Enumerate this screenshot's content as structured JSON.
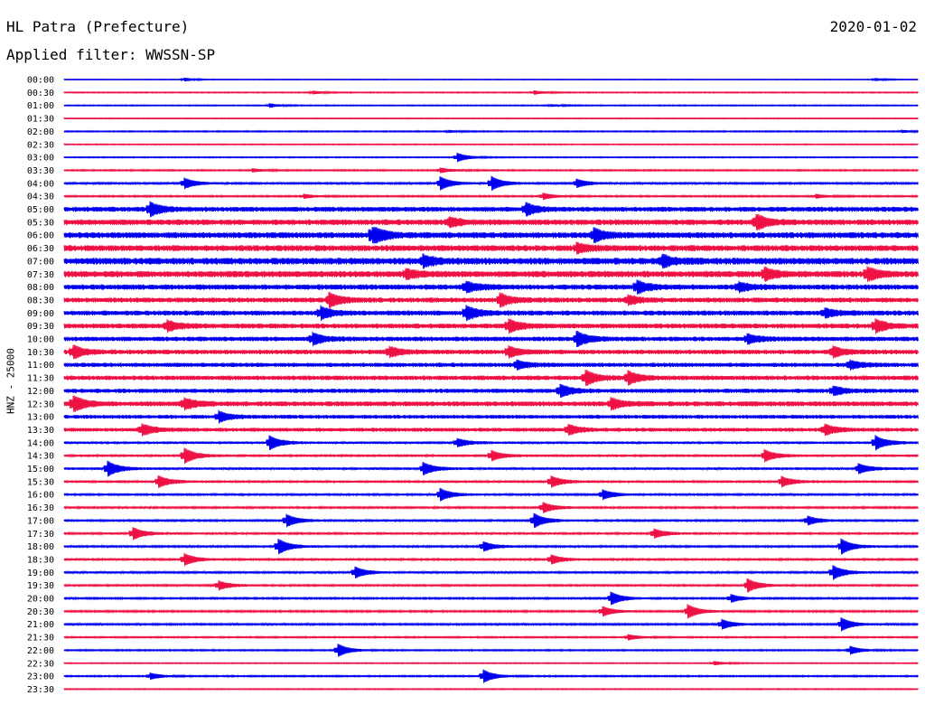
{
  "header": {
    "station": "HL Patra (Prefecture)",
    "date": "2020-01-02",
    "filter": "Applied filter: WWSSN-SP"
  },
  "chart_data": {
    "type": "line",
    "ylabel": "HNZ - 25000",
    "colors": {
      "even": "#0000ee",
      "odd": "#ee1144"
    },
    "rows": [
      {
        "time": "00:00",
        "amp": 0.4,
        "events": [
          [
            0.14,
            0.9
          ],
          [
            0.95,
            0.6
          ]
        ]
      },
      {
        "time": "00:30",
        "amp": 0.6,
        "events": [
          [
            0.29,
            0.8
          ],
          [
            0.55,
            0.9
          ]
        ]
      },
      {
        "time": "01:00",
        "amp": 0.6,
        "events": [
          [
            0.24,
            0.9
          ],
          [
            0.57,
            0.5
          ]
        ]
      },
      {
        "time": "01:30",
        "amp": 0.5,
        "events": []
      },
      {
        "time": "02:00",
        "amp": 0.7,
        "events": [
          [
            0.45,
            0.5
          ],
          [
            0.98,
            0.6
          ]
        ]
      },
      {
        "time": "02:30",
        "amp": 0.6,
        "events": []
      },
      {
        "time": "03:00",
        "amp": 0.6,
        "events": [
          [
            0.46,
            2.2
          ]
        ]
      },
      {
        "time": "03:30",
        "amp": 0.8,
        "events": [
          [
            0.22,
            0.8
          ],
          [
            0.44,
            1.2
          ]
        ]
      },
      {
        "time": "04:00",
        "amp": 1.1,
        "events": [
          [
            0.14,
            2.6
          ],
          [
            0.44,
            3.2
          ],
          [
            0.5,
            3.4
          ],
          [
            0.6,
            2.0
          ]
        ]
      },
      {
        "time": "04:30",
        "amp": 0.9,
        "events": [
          [
            0.28,
            1.0
          ],
          [
            0.56,
            1.6
          ],
          [
            0.88,
            0.9
          ]
        ]
      },
      {
        "time": "05:00",
        "amp": 2.8,
        "events": [
          [
            0.1,
            3.2
          ],
          [
            0.54,
            2.8
          ]
        ]
      },
      {
        "time": "05:30",
        "amp": 3.2,
        "events": [
          [
            0.45,
            2.0
          ],
          [
            0.81,
            3.8
          ]
        ]
      },
      {
        "time": "06:00",
        "amp": 3.4,
        "events": [
          [
            0.36,
            5.0
          ],
          [
            0.62,
            3.0
          ]
        ]
      },
      {
        "time": "06:30",
        "amp": 3.4,
        "events": [
          [
            0.6,
            2.0
          ]
        ]
      },
      {
        "time": "07:00",
        "amp": 3.8,
        "events": [
          [
            0.42,
            2.5
          ],
          [
            0.7,
            2.5
          ]
        ]
      },
      {
        "time": "07:30",
        "amp": 3.6,
        "events": [
          [
            0.4,
            2.0
          ],
          [
            0.82,
            2.6
          ],
          [
            0.94,
            3.0
          ]
        ]
      },
      {
        "time": "08:00",
        "amp": 3.0,
        "events": [
          [
            0.47,
            2.4
          ],
          [
            0.67,
            3.0
          ],
          [
            0.79,
            2.0
          ]
        ]
      },
      {
        "time": "08:30",
        "amp": 2.8,
        "events": [
          [
            0.31,
            3.4
          ],
          [
            0.51,
            3.0
          ],
          [
            0.66,
            2.0
          ]
        ]
      },
      {
        "time": "09:00",
        "amp": 2.8,
        "events": [
          [
            0.3,
            2.8
          ],
          [
            0.47,
            3.4
          ],
          [
            0.89,
            2.0
          ]
        ]
      },
      {
        "time": "09:30",
        "amp": 2.8,
        "events": [
          [
            0.12,
            2.4
          ],
          [
            0.52,
            3.0
          ],
          [
            0.95,
            3.0
          ]
        ]
      },
      {
        "time": "10:00",
        "amp": 2.6,
        "events": [
          [
            0.29,
            2.8
          ],
          [
            0.6,
            3.4
          ],
          [
            0.8,
            2.2
          ]
        ]
      },
      {
        "time": "10:30",
        "amp": 2.6,
        "events": [
          [
            0.01,
            3.0
          ],
          [
            0.38,
            2.4
          ],
          [
            0.52,
            2.6
          ],
          [
            0.9,
            2.4
          ]
        ]
      },
      {
        "time": "11:00",
        "amp": 2.4,
        "events": [
          [
            0.53,
            2.0
          ],
          [
            0.92,
            2.0
          ]
        ]
      },
      {
        "time": "11:30",
        "amp": 2.6,
        "events": [
          [
            0.61,
            3.6
          ],
          [
            0.66,
            3.0
          ]
        ]
      },
      {
        "time": "12:00",
        "amp": 2.4,
        "events": [
          [
            0.58,
            3.0
          ],
          [
            0.9,
            2.0
          ]
        ]
      },
      {
        "time": "12:30",
        "amp": 2.8,
        "events": [
          [
            0.01,
            3.8
          ],
          [
            0.14,
            2.6
          ],
          [
            0.64,
            2.6
          ]
        ]
      },
      {
        "time": "13:00",
        "amp": 2.2,
        "events": [
          [
            0.18,
            2.6
          ]
        ]
      },
      {
        "time": "13:30",
        "amp": 2.2,
        "events": [
          [
            0.09,
            2.8
          ],
          [
            0.59,
            2.4
          ],
          [
            0.89,
            2.6
          ]
        ]
      },
      {
        "time": "14:00",
        "amp": 1.4,
        "events": [
          [
            0.24,
            3.4
          ],
          [
            0.46,
            2.0
          ],
          [
            0.95,
            3.4
          ]
        ]
      },
      {
        "time": "14:30",
        "amp": 1.4,
        "events": [
          [
            0.14,
            3.8
          ],
          [
            0.5,
            2.4
          ],
          [
            0.82,
            2.8
          ]
        ]
      },
      {
        "time": "15:00",
        "amp": 1.4,
        "events": [
          [
            0.05,
            3.8
          ],
          [
            0.42,
            3.0
          ],
          [
            0.93,
            2.4
          ]
        ]
      },
      {
        "time": "15:30",
        "amp": 1.4,
        "events": [
          [
            0.11,
            2.8
          ],
          [
            0.57,
            2.6
          ],
          [
            0.84,
            2.4
          ]
        ]
      },
      {
        "time": "16:00",
        "amp": 1.2,
        "events": [
          [
            0.44,
            3.0
          ],
          [
            0.63,
            2.4
          ]
        ]
      },
      {
        "time": "16:30",
        "amp": 1.2,
        "events": [
          [
            0.56,
            2.6
          ]
        ]
      },
      {
        "time": "17:00",
        "amp": 1.2,
        "events": [
          [
            0.26,
            3.0
          ],
          [
            0.55,
            3.4
          ],
          [
            0.87,
            2.2
          ]
        ]
      },
      {
        "time": "17:30",
        "amp": 1.2,
        "events": [
          [
            0.08,
            3.0
          ],
          [
            0.69,
            2.4
          ]
        ]
      },
      {
        "time": "18:00",
        "amp": 1.2,
        "events": [
          [
            0.25,
            3.8
          ],
          [
            0.49,
            2.4
          ],
          [
            0.91,
            3.6
          ]
        ]
      },
      {
        "time": "18:30",
        "amp": 1.2,
        "events": [
          [
            0.14,
            3.0
          ],
          [
            0.57,
            2.2
          ]
        ]
      },
      {
        "time": "19:00",
        "amp": 1.2,
        "events": [
          [
            0.34,
            2.8
          ],
          [
            0.9,
            3.4
          ]
        ]
      },
      {
        "time": "19:30",
        "amp": 1.2,
        "events": [
          [
            0.18,
            2.2
          ],
          [
            0.8,
            3.2
          ]
        ]
      },
      {
        "time": "20:00",
        "amp": 1.0,
        "events": [
          [
            0.64,
            3.2
          ],
          [
            0.78,
            2.0
          ]
        ]
      },
      {
        "time": "20:30",
        "amp": 1.0,
        "events": [
          [
            0.63,
            2.4
          ],
          [
            0.73,
            3.4
          ]
        ]
      },
      {
        "time": "21:00",
        "amp": 1.0,
        "events": [
          [
            0.77,
            2.4
          ],
          [
            0.91,
            3.2
          ]
        ]
      },
      {
        "time": "21:30",
        "amp": 0.8,
        "events": [
          [
            0.66,
            1.4
          ]
        ]
      },
      {
        "time": "22:00",
        "amp": 0.8,
        "events": [
          [
            0.32,
            3.2
          ],
          [
            0.92,
            2.0
          ]
        ]
      },
      {
        "time": "22:30",
        "amp": 0.6,
        "events": [
          [
            0.76,
            1.0
          ]
        ]
      },
      {
        "time": "23:00",
        "amp": 0.8,
        "events": [
          [
            0.49,
            3.4
          ],
          [
            0.1,
            1.6
          ]
        ]
      },
      {
        "time": "23:30",
        "amp": 0.6,
        "events": []
      }
    ]
  }
}
